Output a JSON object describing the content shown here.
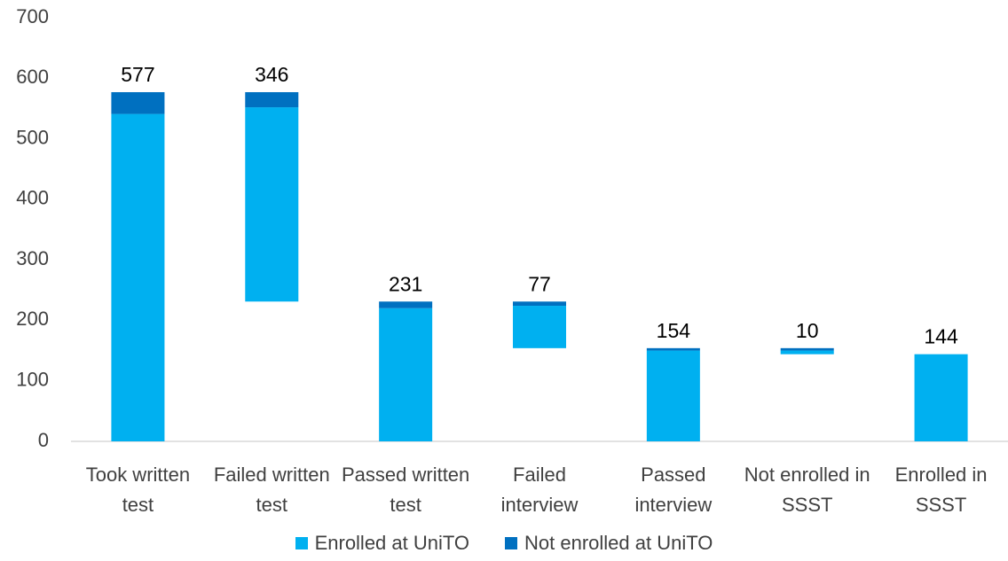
{
  "chart_data": {
    "type": "waterfall",
    "categories": [
      "Took written test",
      "Failed written test",
      "Passed written test",
      "Failed interview",
      "Passed interview",
      "Not enrolled in SSST",
      "Enrolled in SSST"
    ],
    "series": [
      {
        "name": "Enrolled at UniTO",
        "color": "#00b0f0",
        "values": [
          541,
          321,
          220,
          70,
          150,
          6,
          144
        ]
      },
      {
        "name": "Not enrolled at UniTO",
        "color": "#0070c0",
        "values": [
          36,
          25,
          11,
          7,
          4,
          4,
          0
        ]
      }
    ],
    "totals": [
      577,
      346,
      231,
      77,
      154,
      10,
      144
    ],
    "ylim": [
      0,
      700
    ],
    "yticks": [
      0,
      100,
      200,
      300,
      400,
      500,
      600,
      700
    ],
    "legend": "bottom"
  }
}
